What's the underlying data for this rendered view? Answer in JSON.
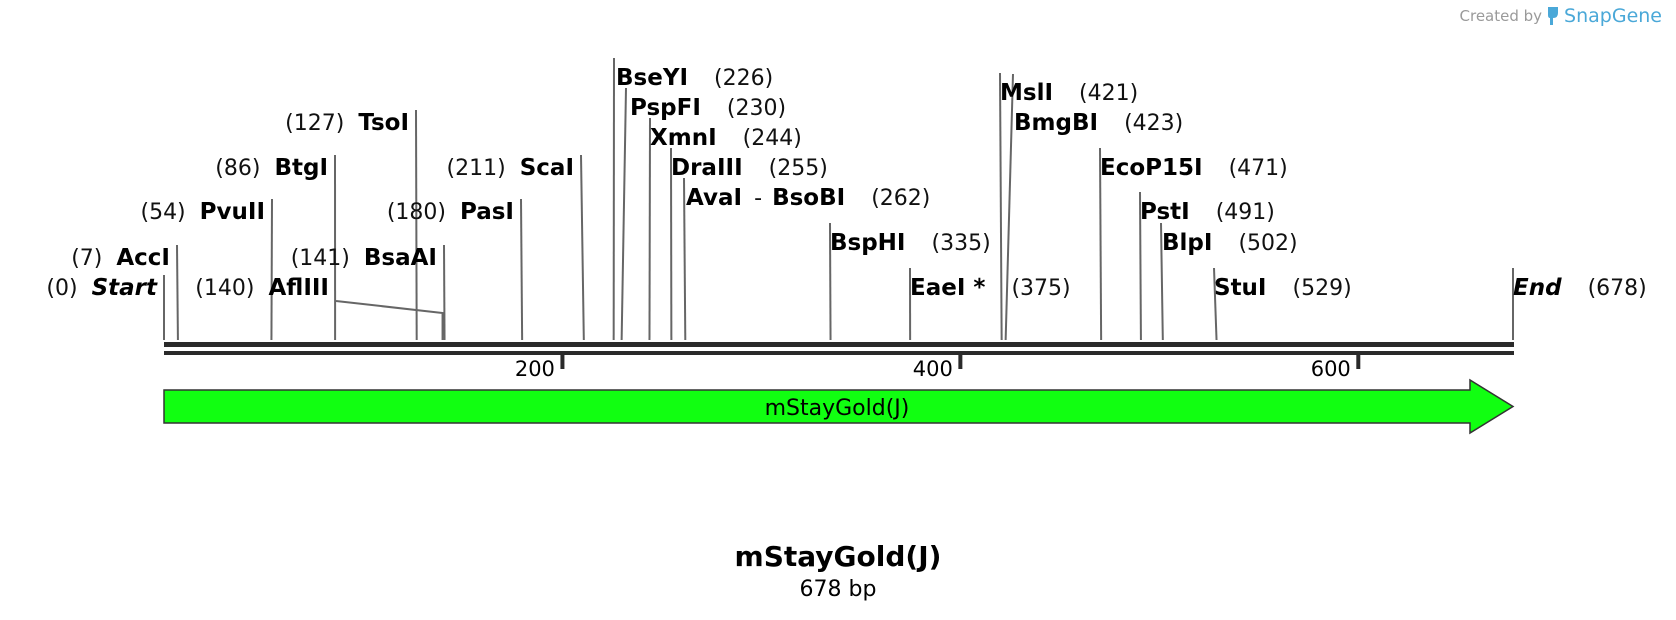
{
  "credit": {
    "prefix": "Created by",
    "brand": "SnapGene",
    "brand_color": "#4aa8d8"
  },
  "sequence": {
    "name": "mStayGold(J)",
    "length_label": "678 bp",
    "length_bp": 678
  },
  "ruler": {
    "ticks": [
      {
        "bp": 200,
        "label": "200"
      },
      {
        "bp": 400,
        "label": "400"
      },
      {
        "bp": 600,
        "label": "600"
      }
    ]
  },
  "feature": {
    "label": "mStayGold(J)",
    "start": 0,
    "end": 678,
    "direction": "forward",
    "color": "#11ff11"
  },
  "sites": [
    {
      "name": "Start",
      "pos": "(0)",
      "bp": 0,
      "italic": true,
      "layout": "left"
    },
    {
      "name": "AccI",
      "pos": "(7)",
      "bp": 7,
      "layout": "left"
    },
    {
      "name": "PvuII",
      "pos": "(54)",
      "bp": 54,
      "layout": "left"
    },
    {
      "name": "BtgI",
      "pos": "(86)",
      "bp": 86,
      "layout": "left"
    },
    {
      "name": "TsoI",
      "pos": "(127)",
      "bp": 127,
      "layout": "left"
    },
    {
      "name": "AflIII",
      "pos": "(140)",
      "bp": 140,
      "layout": "left"
    },
    {
      "name": "BsaAI",
      "pos": "(141)",
      "bp": 141,
      "layout": "left"
    },
    {
      "name": "PasI",
      "pos": "(180)",
      "bp": 180,
      "layout": "left"
    },
    {
      "name": "ScaI",
      "pos": "(211)",
      "bp": 211,
      "layout": "left"
    },
    {
      "name": "BseYI",
      "pos": "(226)",
      "bp": 226,
      "layout": "right"
    },
    {
      "name": "PspFI",
      "pos": "(230)",
      "bp": 230,
      "layout": "right"
    },
    {
      "name": "XmnI",
      "pos": "(244)",
      "bp": 244,
      "layout": "right"
    },
    {
      "name": "DraIII",
      "pos": "(255)",
      "bp": 255,
      "layout": "right"
    },
    {
      "name": "AvaI",
      "name2": "BsoBI",
      "pos": "(262)",
      "bp": 262,
      "layout": "right"
    },
    {
      "name": "BspHI",
      "pos": "(335)",
      "bp": 335,
      "layout": "right"
    },
    {
      "name": "EaeI *",
      "pos": "(375)",
      "bp": 375,
      "layout": "right"
    },
    {
      "name": "MslI",
      "pos": "(421)",
      "bp": 421,
      "layout": "right"
    },
    {
      "name": "BmgBI",
      "pos": "(423)",
      "bp": 423,
      "layout": "right"
    },
    {
      "name": "EcoP15I",
      "pos": "(471)",
      "bp": 471,
      "layout": "right"
    },
    {
      "name": "PstI",
      "pos": "(491)",
      "bp": 491,
      "layout": "right"
    },
    {
      "name": "BlpI",
      "pos": "(502)",
      "bp": 502,
      "layout": "right"
    },
    {
      "name": "StuI",
      "pos": "(529)",
      "bp": 529,
      "layout": "right"
    },
    {
      "name": "End",
      "pos": "(678)",
      "bp": 678,
      "italic": true,
      "layout": "right"
    }
  ]
}
